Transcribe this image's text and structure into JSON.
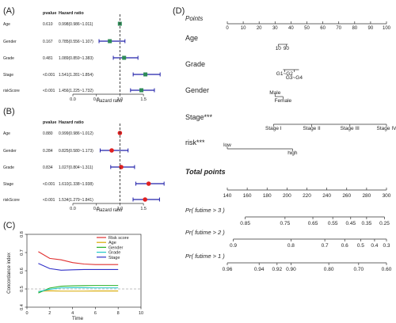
{
  "chart_data": [
    {
      "type": "forest",
      "panel_label": "(A)",
      "col_pvalue": "pvalue",
      "col_hr": "Hazard ratio",
      "xlabel": "Hazard ratio",
      "xlim": [
        0,
        1.75
      ],
      "ticks": [
        "0.0",
        "0.5",
        "1.0",
        "1.5"
      ],
      "tick_values": [
        0,
        0.5,
        1.0,
        1.5
      ],
      "marker_color": "#2e8b57",
      "rows": [
        {
          "name": "Age",
          "pvalue": "0.610",
          "hr_text": "0.998(0.986~1.011)",
          "hr": 0.998,
          "lo": 0.986,
          "hi": 1.011
        },
        {
          "name": "Gender",
          "pvalue": "0.167",
          "hr_text": "0.785(0.556~1.107)",
          "hr": 0.785,
          "lo": 0.556,
          "hi": 1.107
        },
        {
          "name": "Grade",
          "pvalue": "0.481",
          "hr_text": "1.089(0.859~1.383)",
          "hr": 1.089,
          "lo": 0.859,
          "hi": 1.383
        },
        {
          "name": "Stage",
          "pvalue": "<0.001",
          "hr_text": "1.541(1.281~1.854)",
          "hr": 1.541,
          "lo": 1.281,
          "hi": 1.854
        },
        {
          "name": "riskScore",
          "pvalue": "<0.001",
          "hr_text": "1.456(1.225~1.732)",
          "hr": 1.456,
          "lo": 1.225,
          "hi": 1.732
        }
      ]
    },
    {
      "type": "forest",
      "panel_label": "(B)",
      "col_pvalue": "pvalue",
      "col_hr": "Hazard ratio",
      "xlabel": "Hazard ratio",
      "xlim": [
        0,
        1.75
      ],
      "ticks": [
        "0.0",
        "0.5",
        "1.0",
        "1.5"
      ],
      "tick_values": [
        0,
        0.5,
        1.0,
        1.5
      ],
      "marker_color": "#e02020",
      "rows": [
        {
          "name": "Age",
          "pvalue": "0.880",
          "hr_text": "0.999(0.986~1.012)",
          "hr": 0.999,
          "lo": 0.986,
          "hi": 1.012
        },
        {
          "name": "Gender",
          "pvalue": "0.284",
          "hr_text": "0.825(0.580~1.173)",
          "hr": 0.825,
          "lo": 0.58,
          "hi": 1.173
        },
        {
          "name": "Grade",
          "pvalue": "0.834",
          "hr_text": "1.027(0.804~1.311)",
          "hr": 1.027,
          "lo": 0.804,
          "hi": 1.311
        },
        {
          "name": "Stage",
          "pvalue": "<0.001",
          "hr_text": "1.610(1.338~1.938)",
          "hr": 1.61,
          "lo": 1.338,
          "hi": 1.938
        },
        {
          "name": "riskScore",
          "pvalue": "<0.001",
          "hr_text": "1.534(1.279~1.841)",
          "hr": 1.534,
          "lo": 1.279,
          "hi": 1.841
        }
      ]
    },
    {
      "type": "line",
      "panel_label": "(C)",
      "xlabel": "Time",
      "ylabel": "Concordance index",
      "xlim": [
        0,
        10
      ],
      "ylim": [
        0.4,
        0.8
      ],
      "xticks": [
        0,
        2,
        4,
        6,
        8,
        10
      ],
      "yticks": [
        0.4,
        0.5,
        0.6,
        0.7,
        0.8
      ],
      "x": [
        1,
        2,
        3,
        4,
        5,
        6,
        7,
        8
      ],
      "reference_y": 0.5,
      "series": [
        {
          "name": "Risk score",
          "color": "#e03030",
          "values": [
            0.705,
            0.668,
            0.66,
            0.645,
            0.637,
            0.634,
            0.634,
            0.634
          ]
        },
        {
          "name": "Age",
          "color": "#d8a800",
          "values": [
            0.487,
            0.49,
            0.488,
            0.488,
            0.488,
            0.489,
            0.489,
            0.489
          ]
        },
        {
          "name": "Gender",
          "color": "#28b028",
          "values": [
            0.478,
            0.505,
            0.515,
            0.517,
            0.518,
            0.519,
            0.519,
            0.519
          ]
        },
        {
          "name": "Grade",
          "color": "#20c8c8",
          "values": [
            0.485,
            0.498,
            0.506,
            0.507,
            0.507,
            0.506,
            0.506,
            0.506
          ]
        },
        {
          "name": "Stage",
          "color": "#3030c8",
          "values": [
            0.64,
            0.612,
            0.603,
            0.605,
            0.607,
            0.607,
            0.607,
            0.607
          ]
        }
      ]
    },
    {
      "type": "nomogram",
      "panel_label": "(D)",
      "points_label": "Points",
      "points_ticks": [
        0,
        10,
        20,
        30,
        40,
        50,
        60,
        70,
        80,
        90,
        100
      ],
      "variables": [
        {
          "name": "Age",
          "start": 32,
          "end": 38,
          "labels": [
            {
              "text": "10",
              "at": 32,
              "pos": "below"
            },
            {
              "text": "90",
              "at": 37,
              "pos": "below"
            }
          ]
        },
        {
          "name": "Grade",
          "start": 35,
          "end": 45,
          "labels": [
            {
              "text": "G1~G2",
              "at": 36,
              "pos": "below"
            },
            {
              "text": "G3~G4",
              "at": 42,
              "pos": "below2"
            }
          ]
        },
        {
          "name": "Gender",
          "start": 30,
          "end": 35,
          "labels": [
            {
              "text": "Male",
              "at": 30,
              "pos": "above"
            },
            {
              "text": "Female",
              "at": 35,
              "pos": "below"
            }
          ]
        },
        {
          "name": "Stage***",
          "start": 29,
          "end": 100,
          "labels": [
            {
              "text": "Stage I",
              "at": 29,
              "pos": "below"
            },
            {
              "text": "Stage II",
              "at": 53,
              "pos": "below"
            },
            {
              "text": "Stage III",
              "at": 77,
              "pos": "below"
            },
            {
              "text": "Stage IV",
              "at": 100,
              "pos": "below"
            }
          ]
        },
        {
          "name": "risk***",
          "start": 0,
          "end": 41,
          "labels": [
            {
              "text": "low",
              "at": 0,
              "pos": "above"
            },
            {
              "text": "high",
              "at": 41,
              "pos": "below"
            }
          ]
        }
      ],
      "total_label": "Total points",
      "total_range": [
        140,
        300
      ],
      "total_ticks": [
        140,
        160,
        180,
        200,
        220,
        240,
        260,
        280,
        300
      ],
      "probabilities": [
        {
          "label": "Pr( futime > 3 )",
          "start": 158,
          "end": 298,
          "ticks": [
            {
              "text": "0.85",
              "at": 158
            },
            {
              "text": "0.75",
              "at": 198
            },
            {
              "text": "0.65",
              "at": 226
            },
            {
              "text": "0.55",
              "at": 246
            },
            {
              "text": "0.45",
              "at": 264
            },
            {
              "text": "0.35",
              "at": 280
            },
            {
              "text": "0.25",
              "at": 298
            }
          ]
        },
        {
          "name": "",
          "label": "Pr( futime > 2 )",
          "start": 146,
          "end": 300,
          "ticks": [
            {
              "text": "0.9",
              "at": 146
            },
            {
              "text": "0.8",
              "at": 204
            },
            {
              "text": "0.7",
              "at": 238
            },
            {
              "text": "0.6",
              "at": 258
            },
            {
              "text": "0.5",
              "at": 274
            },
            {
              "text": "0.4",
              "at": 288
            },
            {
              "text": "0.3",
              "at": 300
            }
          ]
        },
        {
          "label": "Pr( futime > 1 )",
          "start": 140,
          "end": 300,
          "ticks": [
            {
              "text": "0.96",
              "at": 140
            },
            {
              "text": "0.94",
              "at": 172
            },
            {
              "text": "0.92",
              "at": 190
            },
            {
              "text": "0.90",
              "at": 204
            },
            {
              "text": "0.80",
              "at": 242
            },
            {
              "text": "0.70",
              "at": 272
            },
            {
              "text": "0.60",
              "at": 300
            }
          ]
        }
      ]
    }
  ]
}
